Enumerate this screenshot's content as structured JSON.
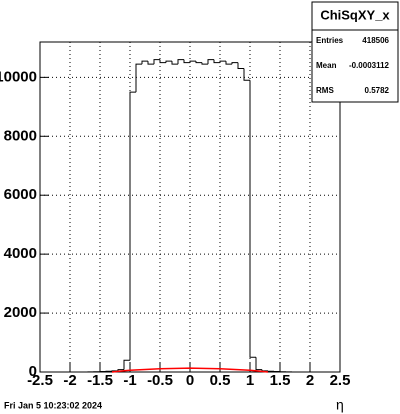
{
  "chart_data": {
    "type": "histogram",
    "x_label": "η",
    "footer": "Fri Jan  5 10:23:02 2024",
    "stats": {
      "title": "ChiSqXY_x",
      "rows": [
        [
          "Entries",
          "418506"
        ],
        [
          "Mean",
          "-0.0003112"
        ],
        [
          "RMS",
          "0.5782"
        ]
      ]
    },
    "bins": [
      -2.5,
      -2.4,
      -2.3,
      -2.2,
      -2.1,
      -2.0,
      -1.9,
      -1.8,
      -1.7,
      -1.6,
      -1.5,
      -1.4,
      -1.3,
      -1.2,
      -1.1,
      -1.0,
      -0.9,
      -0.8,
      -0.7,
      -0.6,
      -0.5,
      -0.4,
      -0.3,
      -0.2,
      -0.1,
      0,
      0.1,
      0.2,
      0.3,
      0.4,
      0.5,
      0.6,
      0.7,
      0.8,
      0.9,
      1.0,
      1.1,
      1.2,
      1.3,
      1.4,
      1.5,
      1.6,
      1.7,
      1.8,
      1.9,
      2.0,
      2.1,
      2.2,
      2.3,
      2.4,
      2.5
    ],
    "series": [
      {
        "color": "#000000",
        "values": [
          0,
          0,
          0,
          0,
          0,
          0,
          0,
          0,
          5,
          10,
          15,
          25,
          40,
          80,
          400,
          9500,
          10450,
          10550,
          10450,
          10600,
          10500,
          10550,
          10450,
          10600,
          10500,
          10550,
          10500,
          10450,
          10600,
          10500,
          10550,
          10450,
          10500,
          10300,
          9900,
          500,
          80,
          40,
          25,
          15,
          10,
          5,
          0,
          0,
          0,
          0,
          0,
          0,
          0,
          0
        ]
      },
      {
        "color": "#ff0000",
        "x": [
          -1.3,
          -1.0,
          -0.5,
          0,
          0.5,
          1.0,
          1.3
        ],
        "values": [
          0,
          60,
          110,
          130,
          110,
          60,
          0
        ]
      }
    ],
    "xlim": [
      -2.5,
      2.5
    ],
    "xticks": [
      -2.5,
      -2,
      -1.5,
      -1,
      -0.5,
      0,
      0.5,
      1,
      1.5,
      2,
      2.5
    ],
    "ylim": [
      0,
      11200
    ],
    "yticks": [
      0,
      2000,
      4000,
      6000,
      8000,
      10000
    ],
    "grid": true
  }
}
